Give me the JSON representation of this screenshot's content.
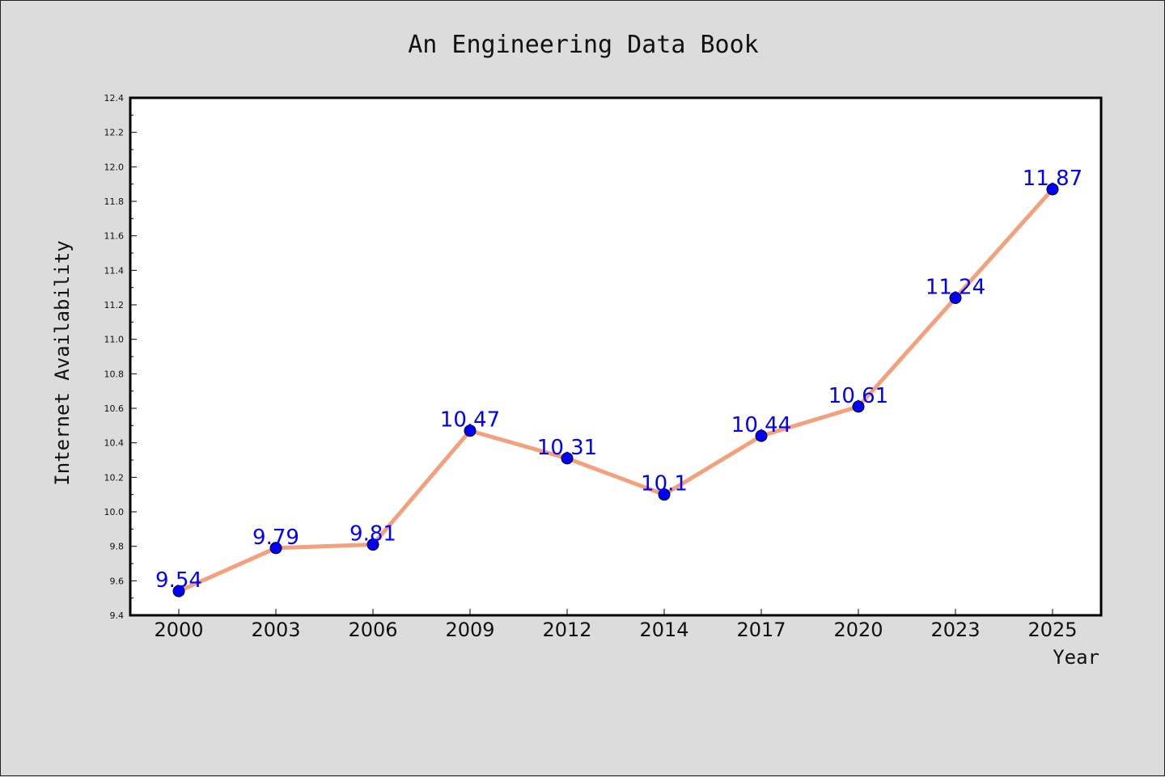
{
  "chart_data": {
    "type": "line",
    "title": "An Engineering Data Book",
    "xlabel": "Year",
    "ylabel": "Internet Availability",
    "categories": [
      "2000",
      "2003",
      "2006",
      "2009",
      "2012",
      "2014",
      "2017",
      "2020",
      "2023",
      "2025"
    ],
    "series": [
      {
        "values": [
          9.54,
          9.79,
          9.81,
          10.47,
          10.31,
          10.1,
          10.44,
          10.61,
          11.24,
          11.87
        ],
        "line_color": "#f4a07c",
        "marker_color": "#0000ff"
      }
    ],
    "data_labels": [
      "9.54",
      "9.79",
      "9.81",
      "10.47",
      "10.31",
      "10.1",
      "10.44",
      "10.61",
      "11.24",
      "11.87"
    ],
    "ylim": [
      9.4,
      12.4
    ],
    "yticks": [
      "9.4",
      "9.6",
      "9.8",
      "10.0",
      "10.2",
      "10.4",
      "10.6",
      "10.8",
      "11.0",
      "11.2",
      "11.4",
      "11.6",
      "11.8",
      "12.0",
      "12.2",
      "12.4"
    ],
    "grid": false,
    "legend": "none"
  }
}
